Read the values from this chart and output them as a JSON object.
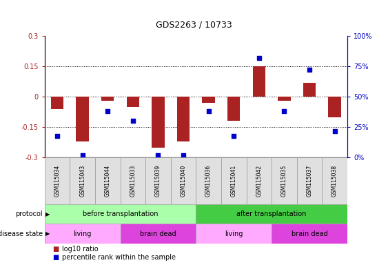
{
  "title": "GDS2263 / 10733",
  "samples": [
    "GSM115034",
    "GSM115043",
    "GSM115044",
    "GSM115033",
    "GSM115039",
    "GSM115040",
    "GSM115036",
    "GSM115041",
    "GSM115042",
    "GSM115035",
    "GSM115037",
    "GSM115038"
  ],
  "log10_ratio": [
    -0.06,
    -0.22,
    -0.02,
    -0.05,
    -0.25,
    -0.22,
    -0.03,
    -0.12,
    0.15,
    -0.02,
    0.07,
    -0.1
  ],
  "percentile_rank": [
    18,
    2,
    38,
    30,
    2,
    2,
    38,
    18,
    82,
    38,
    72,
    22
  ],
  "ylim_left": [
    -0.3,
    0.3
  ],
  "ylim_right": [
    0,
    100
  ],
  "yticks_left": [
    -0.3,
    -0.15,
    0,
    0.15,
    0.3
  ],
  "yticks_right": [
    0,
    25,
    50,
    75,
    100
  ],
  "ytick_labels_left": [
    "-0.3",
    "-0.15",
    "0",
    "0.15",
    "0.3"
  ],
  "ytick_labels_right": [
    "0%",
    "25%",
    "50%",
    "75%",
    "100%"
  ],
  "bar_color": "#aa2222",
  "dot_color": "#0000cc",
  "protocol_before": {
    "label": "before transplantation",
    "color": "#aaffaa",
    "start": 0,
    "end": 6
  },
  "protocol_after": {
    "label": "after transplantation",
    "color": "#44cc44",
    "start": 6,
    "end": 12
  },
  "disease_living1": {
    "label": "living",
    "color": "#ffaaff",
    "start": 0,
    "end": 3
  },
  "disease_brain1": {
    "label": "brain dead",
    "color": "#dd44dd",
    "start": 3,
    "end": 6
  },
  "disease_living2": {
    "label": "living",
    "color": "#ffaaff",
    "start": 6,
    "end": 9
  },
  "disease_brain2": {
    "label": "brain dead",
    "color": "#dd44dd",
    "start": 9,
    "end": 12
  },
  "dotted_line_vals": [
    -0.15,
    0,
    0.15
  ],
  "bar_width": 0.5
}
